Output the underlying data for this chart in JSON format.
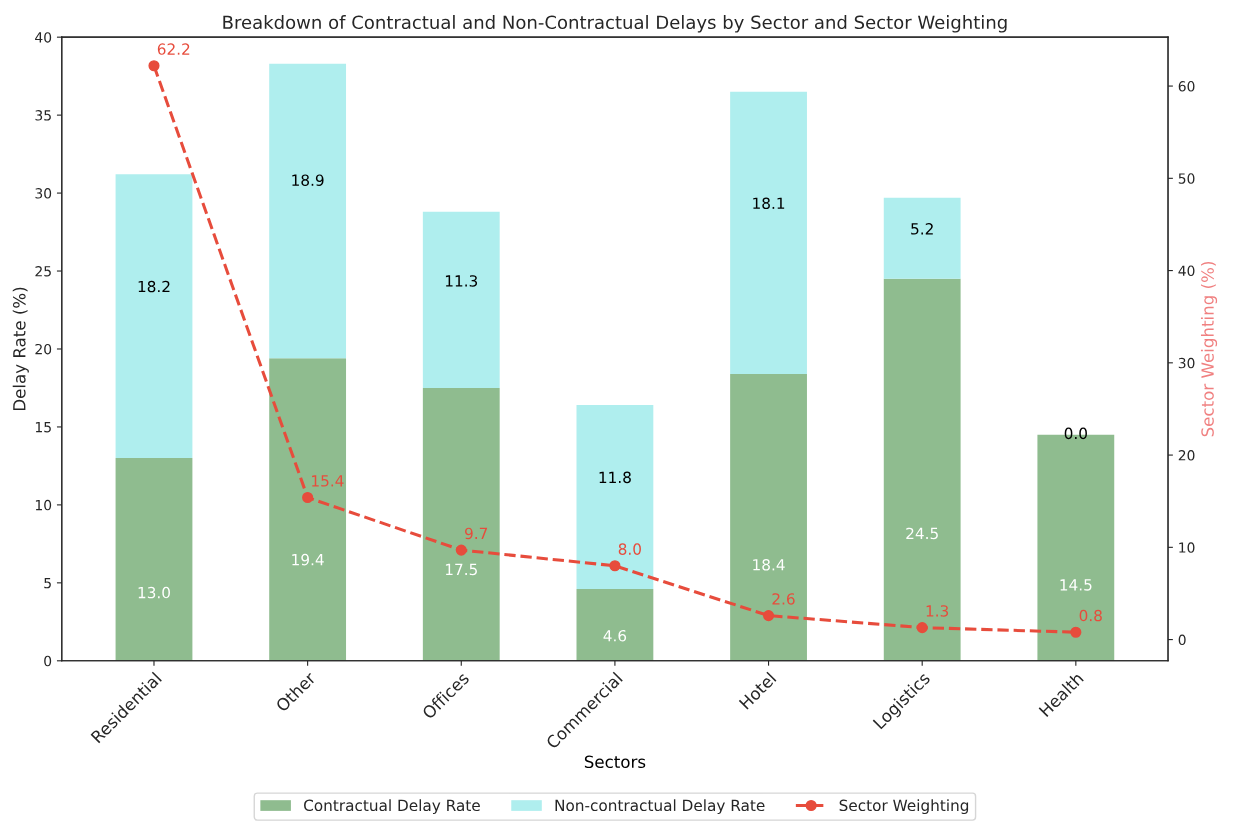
{
  "chart_data": {
    "type": "bar",
    "title": "Breakdown of Contractual and Non-Contractual Delays by Sector and Sector Weighting",
    "xlabel": "Sectors",
    "ylabel": "Delay Rate (%)",
    "y2label": "Sector Weighting (%)",
    "categories": [
      "Residential",
      "Other",
      "Offices",
      "Commercial",
      "Hotel",
      "Logistics",
      "Health"
    ],
    "stacked": true,
    "legend": "bottom",
    "grid": false,
    "ylim": [
      0,
      40
    ],
    "yticks": [
      0,
      5,
      10,
      15,
      20,
      25,
      30,
      35,
      40
    ],
    "y2lim": [
      -2.3,
      65.3
    ],
    "y2ticks": [
      0,
      10,
      20,
      30,
      40,
      50,
      60
    ],
    "series": [
      {
        "name": "Contractual Delay Rate",
        "color": "#8fbc8f",
        "values": [
          13.0,
          19.4,
          17.5,
          4.6,
          18.4,
          24.5,
          14.5
        ],
        "value_labels": [
          "13.0",
          "19.4",
          "17.5",
          "4.6",
          "18.4",
          "24.5",
          "14.5"
        ]
      },
      {
        "name": "Non-contractual Delay Rate",
        "color": "#afeeee",
        "values": [
          18.2,
          18.9,
          11.3,
          11.8,
          18.1,
          5.2,
          0.0
        ],
        "value_labels": [
          "18.2",
          "18.9",
          "11.3",
          "11.8",
          "18.1",
          "5.2",
          "0.0"
        ]
      },
      {
        "name": "Sector Weighting",
        "type": "line",
        "axis": "y2",
        "color": "#e74c3c",
        "marker": "circle",
        "line_style": "dashed",
        "values": [
          62.2,
          15.4,
          9.7,
          8.0,
          2.6,
          1.3,
          0.8
        ],
        "value_labels": [
          "62.2",
          "15.4",
          "9.7",
          "8.0",
          "2.6",
          "1.3",
          "0.8"
        ]
      }
    ]
  }
}
